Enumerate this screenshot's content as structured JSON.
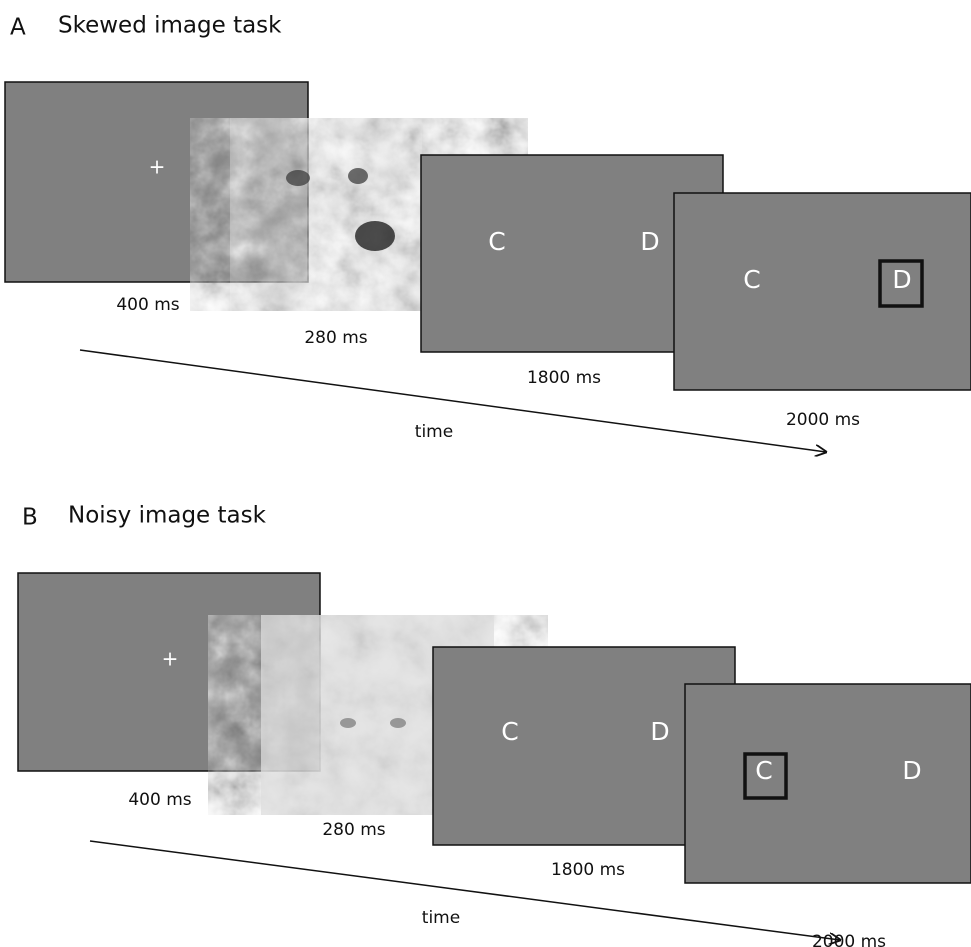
{
  "panels": [
    {
      "label": "A",
      "title": "Skewed image task",
      "time": "time",
      "screens": [
        {
          "duration": "400 ms",
          "symbol": "+"
        },
        {
          "duration": "280 ms"
        },
        {
          "duration": "1800 ms",
          "letters": [
            "C",
            "D"
          ]
        },
        {
          "duration": "2000 ms",
          "letters": [
            "C",
            "D"
          ]
        }
      ]
    },
    {
      "label": "B",
      "title": "Noisy image task",
      "time": "time",
      "screens": [
        {
          "duration": "400 ms",
          "symbol": "+"
        },
        {
          "duration": "280 ms"
        },
        {
          "duration": "1800 ms",
          "letters": [
            "C",
            "D"
          ]
        },
        {
          "duration": "2000 ms",
          "letters": [
            "C",
            "D"
          ]
        }
      ]
    }
  ]
}
